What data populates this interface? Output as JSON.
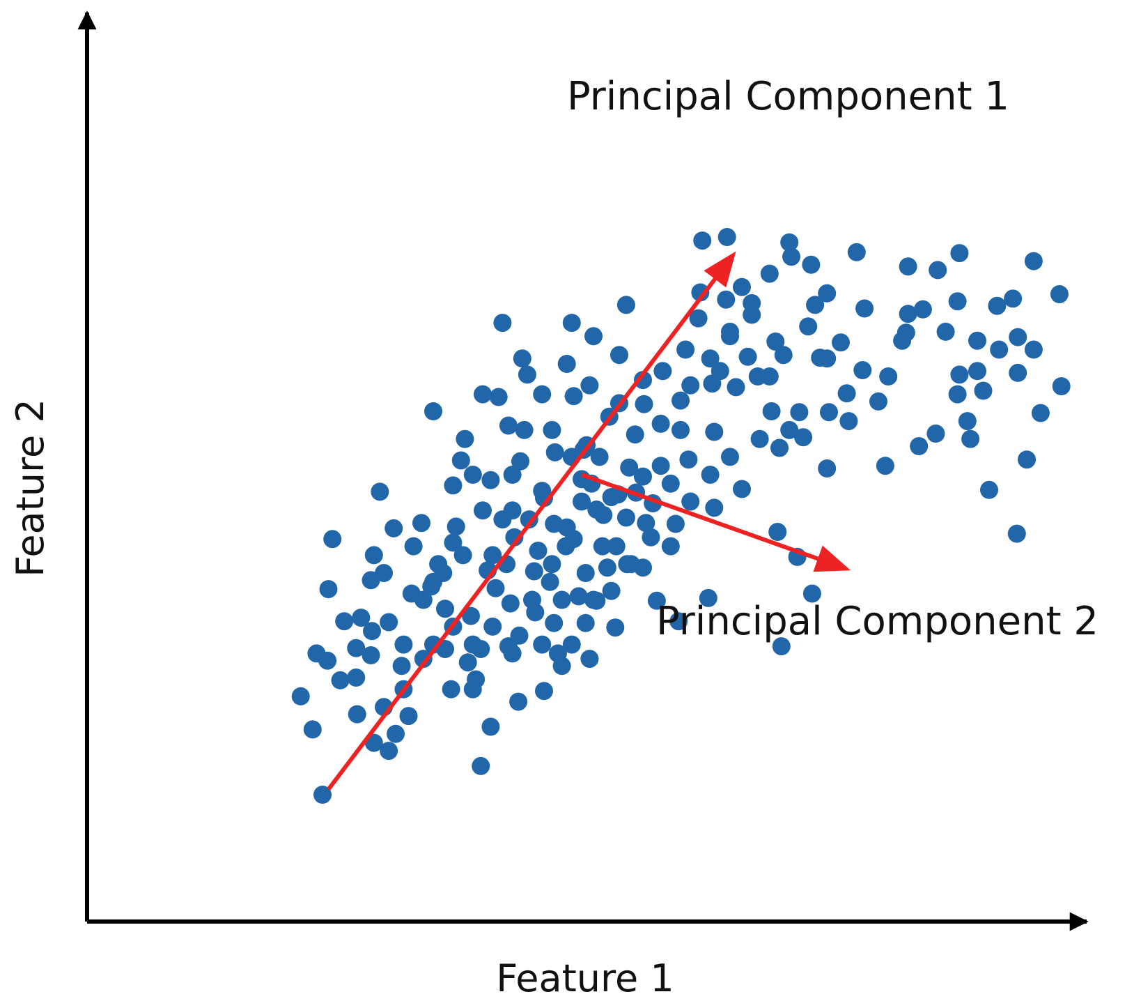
{
  "chart_data": {
    "type": "scatter",
    "title": "",
    "xlabel": "Feature 1",
    "ylabel": "Feature 2",
    "xlim": [
      0,
      10
    ],
    "ylim": [
      0,
      10
    ],
    "grid": false,
    "ticks": false,
    "series": [
      {
        "color": "#2166a8",
        "points": [
          [
            2.16,
            2.52
          ],
          [
            2.28,
            2.15
          ],
          [
            2.38,
            1.42
          ],
          [
            2.43,
            2.92
          ],
          [
            2.44,
            3.72
          ],
          [
            2.48,
            4.28
          ],
          [
            2.73,
            2.32
          ],
          [
            2.77,
            3.4
          ],
          [
            2.87,
            2.98
          ],
          [
            2.87,
            3.82
          ],
          [
            2.96,
            4.81
          ],
          [
            3.05,
            1.91
          ],
          [
            3.18,
            2.86
          ],
          [
            3.28,
            3.67
          ],
          [
            3.25,
            2.3
          ],
          [
            3.38,
            4.46
          ],
          [
            3.48,
            3.75
          ],
          [
            3.5,
            5.71
          ],
          [
            3.62,
            3.5
          ],
          [
            3.55,
            4.0
          ],
          [
            3.7,
            4.24
          ],
          [
            3.73,
            4.42
          ],
          [
            3.78,
            5.16
          ],
          [
            3.85,
            2.9
          ],
          [
            3.88,
            3.42
          ],
          [
            3.98,
            1.74
          ],
          [
            3.93,
            2.71
          ],
          [
            3.98,
            3.05
          ],
          [
            4.08,
            2.18
          ],
          [
            4.05,
            3.93
          ],
          [
            4.1,
            3.3
          ],
          [
            4.13,
            3.73
          ],
          [
            4.08,
            4.94
          ],
          [
            4.16,
            5.87
          ],
          [
            4.2,
            4.5
          ],
          [
            4.26,
            3.08
          ],
          [
            4.24,
            4.0
          ],
          [
            4.28,
            3.56
          ],
          [
            4.36,
            2.46
          ],
          [
            4.32,
            4.3
          ],
          [
            4.45,
            6.12
          ],
          [
            4.37,
            3.2
          ],
          [
            4.47,
            4.5
          ],
          [
            4.52,
            3.92
          ],
          [
            4.53,
            3.46
          ],
          [
            4.56,
            4.15
          ],
          [
            4.62,
            4.74
          ],
          [
            4.62,
            2.58
          ],
          [
            4.68,
            3.8
          ],
          [
            4.72,
            3.34
          ],
          [
            4.84,
            4.2
          ],
          [
            4.76,
            3.0
          ],
          [
            4.73,
            5.25
          ],
          [
            4.8,
            2.86
          ],
          [
            4.85,
            4.41
          ],
          [
            4.9,
            6.7
          ],
          [
            4.97,
            3.64
          ],
          [
            5.05,
            5.33
          ],
          [
            5.04,
            3.34
          ],
          [
            5.0,
            4.95
          ],
          [
            5.04,
            3.9
          ],
          [
            5.08,
            2.94
          ],
          [
            5.18,
            5.2
          ],
          [
            5.15,
            4.61
          ],
          [
            5.21,
            4.2
          ],
          [
            5.15,
            3.59
          ],
          [
            5.26,
            3.96
          ],
          [
            5.28,
            5.65
          ],
          [
            5.38,
            6.34
          ],
          [
            5.37,
            4.78
          ],
          [
            5.34,
            3.29
          ],
          [
            5.45,
            6.9
          ],
          [
            5.46,
            4.0
          ],
          [
            5.54,
            5.45
          ],
          [
            5.62,
            3.96
          ],
          [
            5.63,
            5.79
          ],
          [
            5.65,
            4.46
          ],
          [
            5.72,
            4.68
          ],
          [
            5.76,
            3.59
          ],
          [
            5.82,
            6.16
          ],
          [
            5.9,
            4.9
          ],
          [
            5.98,
            3.36
          ],
          [
            6.0,
            5.83
          ],
          [
            6.08,
            5.17
          ],
          [
            6.22,
            7.62
          ],
          [
            6.28,
            3.62
          ],
          [
            6.34,
            4.63
          ],
          [
            6.32,
            6.02
          ],
          [
            6.34,
            5.48
          ],
          [
            6.4,
            6.16
          ],
          [
            6.47,
            7.66
          ],
          [
            6.5,
            6.55
          ],
          [
            6.56,
            5.98
          ],
          [
            6.62,
            4.84
          ],
          [
            6.68,
            6.32
          ],
          [
            6.72,
            6.79
          ],
          [
            6.92,
            5.71
          ],
          [
            6.98,
            4.36
          ],
          [
            7.04,
            6.34
          ],
          [
            7.02,
            3.08
          ],
          [
            7.12,
            7.44
          ],
          [
            7.18,
            4.08
          ],
          [
            7.2,
            5.7
          ],
          [
            7.29,
            6.66
          ],
          [
            7.32,
            7.35
          ],
          [
            7.33,
            3.67
          ],
          [
            7.41,
            6.31
          ],
          [
            7.48,
            5.07
          ],
          [
            7.48,
            7.03
          ],
          [
            7.62,
            6.48
          ],
          [
            7.68,
            5.91
          ],
          [
            7.78,
            7.49
          ],
          [
            7.84,
            6.17
          ],
          [
            8.0,
            5.82
          ],
          [
            8.07,
            5.1
          ],
          [
            8.28,
            6.59
          ],
          [
            8.3,
            7.33
          ],
          [
            8.3,
            6.8
          ],
          [
            8.6,
            7.29
          ],
          [
            8.82,
            6.12
          ],
          [
            8.8,
            6.94
          ],
          [
            8.82,
            7.48
          ],
          [
            8.9,
            5.6
          ],
          [
            9.0,
            6.16
          ],
          [
            9.2,
            6.89
          ],
          [
            9.41,
            6.14
          ],
          [
            9.41,
            6.54
          ],
          [
            9.4,
            4.34
          ],
          [
            9.36,
            6.97
          ],
          [
            9.12,
            4.83
          ],
          [
            9.22,
            6.4
          ],
          [
            9.0,
            6.5
          ],
          [
            9.57,
            7.39
          ],
          [
            9.85,
            5.99
          ],
          [
            9.83,
            7.02
          ],
          [
            9.64,
            5.69
          ],
          [
            9.57,
            6.4
          ],
          [
            9.5,
            5.17
          ],
          [
            9.06,
            5.94
          ],
          [
            8.93,
            5.4
          ],
          [
            8.8,
            5.9
          ],
          [
            8.58,
            5.46
          ],
          [
            8.41,
            5.32
          ],
          [
            8.68,
            6.6
          ],
          [
            8.45,
            6.85
          ],
          [
            8.24,
            6.5
          ],
          [
            8.1,
            6.1
          ],
          [
            7.86,
            6.86
          ],
          [
            7.7,
            5.6
          ],
          [
            7.48,
            6.3
          ],
          [
            7.24,
            5.42
          ],
          [
            7.36,
            6.9
          ],
          [
            7.5,
            5.7
          ],
          [
            7.1,
            5.5
          ],
          [
            6.96,
            6.49
          ],
          [
            6.78,
            6.1
          ],
          [
            6.62,
            7.1
          ],
          [
            6.46,
            6.96
          ],
          [
            6.18,
            6.75
          ],
          [
            6.05,
            6.4
          ],
          [
            6.2,
            7.04
          ],
          [
            5.95,
            4.45
          ],
          [
            5.62,
            4.98
          ],
          [
            5.62,
            6.06
          ],
          [
            5.8,
            5.57
          ],
          [
            5.38,
            5.8
          ],
          [
            5.12,
            6.55
          ],
          [
            5.08,
            6.0
          ],
          [
            4.85,
            6.24
          ],
          [
            4.92,
            5.88
          ],
          [
            5.02,
            5.28
          ],
          [
            5.3,
            4.75
          ],
          [
            5.48,
            5.08
          ],
          [
            5.45,
            4.52
          ],
          [
            5.22,
            4.55
          ],
          [
            4.92,
            4.28
          ],
          [
            4.72,
            4.45
          ],
          [
            4.6,
            4.82
          ],
          [
            4.38,
            5.15
          ],
          [
            4.26,
            5.55
          ],
          [
            4.42,
            5.5
          ],
          [
            4.3,
            4.6
          ],
          [
            4.0,
            4.6
          ],
          [
            3.9,
            5.0
          ],
          [
            3.82,
            5.4
          ],
          [
            3.7,
            4.88
          ],
          [
            3.62,
            3.05
          ],
          [
            3.4,
            2.94
          ],
          [
            3.2,
            2.6
          ],
          [
            3.05,
            3.35
          ],
          [
            2.88,
            3.25
          ],
          [
            2.72,
            3.06
          ],
          [
            2.6,
            3.36
          ],
          [
            2.56,
            2.7
          ],
          [
            2.32,
            3.0
          ],
          [
            2.72,
            2.73
          ],
          [
            3.0,
            2.4
          ],
          [
            2.9,
            2.0
          ],
          [
            3.12,
            2.1
          ],
          [
            3.5,
            3.1
          ],
          [
            3.68,
            2.6
          ],
          [
            3.9,
            2.6
          ],
          [
            4.3,
            3.0
          ],
          [
            4.6,
            3.1
          ],
          [
            4.9,
            3.1
          ],
          [
            5.12,
            3.6
          ],
          [
            5.35,
            4.2
          ],
          [
            5.55,
            4.8
          ],
          [
            5.8,
            5.1
          ],
          [
            6.0,
            5.5
          ],
          [
            6.1,
            6.0
          ],
          [
            6.3,
            6.3
          ],
          [
            6.5,
            6.6
          ],
          [
            6.72,
            6.92
          ],
          [
            6.9,
            7.25
          ],
          [
            7.1,
            7.6
          ],
          [
            6.9,
            6.1
          ],
          [
            7.0,
            5.3
          ],
          [
            6.8,
            5.4
          ],
          [
            6.5,
            5.2
          ],
          [
            6.3,
            5.0
          ],
          [
            6.1,
            4.7
          ],
          [
            5.9,
            4.2
          ],
          [
            5.7,
            4.3
          ],
          [
            5.5,
            4.0
          ],
          [
            5.3,
            3.7
          ],
          [
            5.1,
            4.9
          ],
          [
            4.9,
            5.2
          ],
          [
            4.7,
            5.5
          ],
          [
            4.6,
            5.9
          ],
          [
            4.4,
            6.3
          ],
          [
            4.2,
            6.7
          ],
          [
            4.0,
            5.9
          ],
          [
            4.3,
            5.0
          ],
          [
            4.1,
            4.1
          ],
          [
            3.8,
            4.1
          ],
          [
            3.6,
            3.9
          ],
          [
            3.4,
            3.6
          ],
          [
            3.3,
            4.2
          ],
          [
            3.1,
            4.4
          ],
          [
            3.0,
            3.9
          ],
          [
            2.9,
            4.1
          ],
          [
            3.2,
            3.1
          ],
          [
            3.5,
            3.8
          ],
          [
            3.7,
            3.3
          ],
          [
            3.9,
            3.1
          ],
          [
            4.5,
            3.6
          ],
          [
            4.7,
            4.0
          ],
          [
            4.8,
            3.6
          ],
          [
            5.0,
            4.7
          ]
        ]
      }
    ],
    "annotations": [
      {
        "text": "Principal Component 1",
        "from": [
          2.44,
          1.48
        ],
        "to": [
          6.56,
          7.5
        ],
        "color": "#ee2222",
        "arrow": "end"
      },
      {
        "text": "Principal Component 2",
        "from": [
          5.0,
          5.0
        ],
        "to": [
          7.72,
          3.93
        ],
        "color": "#ee2222",
        "arrow": "end"
      }
    ]
  }
}
